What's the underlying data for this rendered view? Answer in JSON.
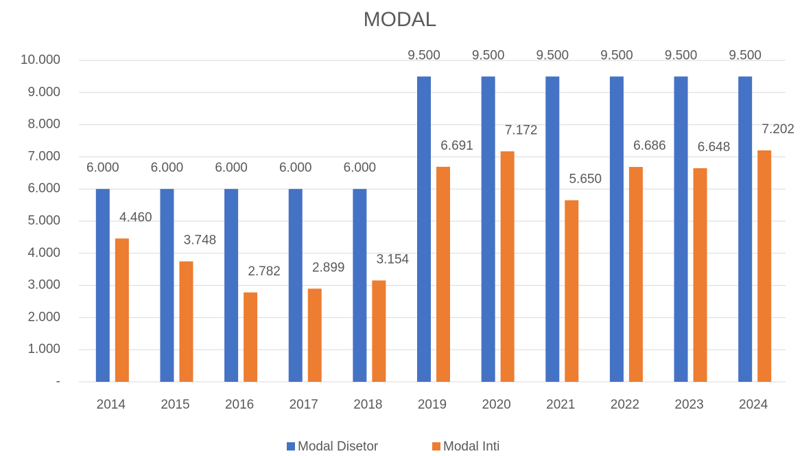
{
  "chart_data": {
    "type": "bar",
    "title": "MODAL",
    "categories": [
      "2014",
      "2015",
      "2016",
      "2017",
      "2018",
      "2019",
      "2020",
      "2021",
      "2022",
      "2023",
      "2024"
    ],
    "series": [
      {
        "name": "Modal Disetor",
        "color": "#4472c4",
        "values": [
          6000,
          6000,
          6000,
          6000,
          6000,
          9500,
          9500,
          9500,
          9500,
          9500,
          9500
        ],
        "value_labels": [
          "6.000",
          "6.000",
          "6.000",
          "6.000",
          "6.000",
          "9.500",
          "9.500",
          "9.500",
          "9.500",
          "9.500",
          "9.500"
        ]
      },
      {
        "name": "Modal Inti",
        "color": "#ed7d31",
        "values": [
          4460,
          3748,
          2782,
          2899,
          3154,
          6691,
          7172,
          5650,
          6686,
          6648,
          7202
        ],
        "value_labels": [
          "4.460",
          "3.748",
          "2.782",
          "2.899",
          "3.154",
          "6.691",
          "7.172",
          "5.650",
          "6.686",
          "6.648",
          "7.202"
        ]
      }
    ],
    "ylim": [
      0,
      10000
    ],
    "yticks": [
      {
        "value": 0,
        "label": "-"
      },
      {
        "value": 1000,
        "label": "1.000"
      },
      {
        "value": 2000,
        "label": "2.000"
      },
      {
        "value": 3000,
        "label": "3.000"
      },
      {
        "value": 4000,
        "label": "4.000"
      },
      {
        "value": 5000,
        "label": "5.000"
      },
      {
        "value": 6000,
        "label": "6.000"
      },
      {
        "value": 7000,
        "label": "7.000"
      },
      {
        "value": 8000,
        "label": "8.000"
      },
      {
        "value": 9000,
        "label": "9.000"
      },
      {
        "value": 10000,
        "label": "10.000"
      }
    ],
    "grid": true,
    "legend": "bottom"
  }
}
